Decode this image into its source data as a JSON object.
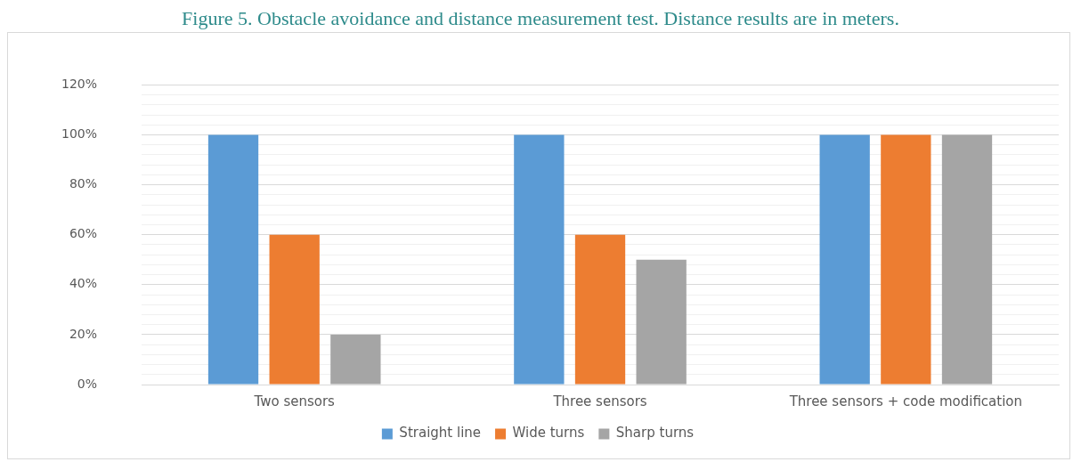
{
  "chart_data": {
    "type": "bar",
    "title": "Figure 5. Obstacle avoidance and distance measurement test. Distance results are in meters.",
    "categories": [
      "Two sensors",
      "Three sensors",
      "Three sensors + code modification"
    ],
    "series": [
      {
        "name": "Straight line",
        "color": "#5b9bd5",
        "values": [
          100,
          100,
          100
        ]
      },
      {
        "name": "Wide turns",
        "color": "#ed7d31",
        "values": [
          60,
          60,
          100
        ]
      },
      {
        "name": "Sharp turns",
        "color": "#a5a5a5",
        "values": [
          20,
          50,
          100
        ]
      }
    ],
    "ylim": [
      0,
      120
    ],
    "yticks": [
      {
        "value": 0,
        "label": "0%"
      },
      {
        "value": 4,
        "label": null
      },
      {
        "value": 8,
        "label": null
      },
      {
        "value": 12,
        "label": null
      },
      {
        "value": 16,
        "label": null
      },
      {
        "value": 20,
        "label": "20%"
      },
      {
        "value": 24,
        "label": null
      },
      {
        "value": 28,
        "label": null
      },
      {
        "value": 32,
        "label": null
      },
      {
        "value": 36,
        "label": null
      },
      {
        "value": 40,
        "label": "40%"
      },
      {
        "value": 44,
        "label": null
      },
      {
        "value": 48,
        "label": null
      },
      {
        "value": 52,
        "label": null
      },
      {
        "value": 56,
        "label": null
      },
      {
        "value": 60,
        "label": "60%"
      },
      {
        "value": 64,
        "label": null
      },
      {
        "value": 68,
        "label": null
      },
      {
        "value": 72,
        "label": null
      },
      {
        "value": 76,
        "label": null
      },
      {
        "value": 80,
        "label": "80%"
      },
      {
        "value": 84,
        "label": null
      },
      {
        "value": 88,
        "label": null
      },
      {
        "value": 92,
        "label": null
      },
      {
        "value": 96,
        "label": null
      },
      {
        "value": 100,
        "label": "100%"
      },
      {
        "value": 104,
        "label": null
      },
      {
        "value": 108,
        "label": null
      },
      {
        "value": 112,
        "label": null
      },
      {
        "value": 116,
        "label": null
      },
      {
        "value": 120,
        "label": "120%"
      }
    ],
    "grid": "y",
    "legend": "bottom"
  }
}
